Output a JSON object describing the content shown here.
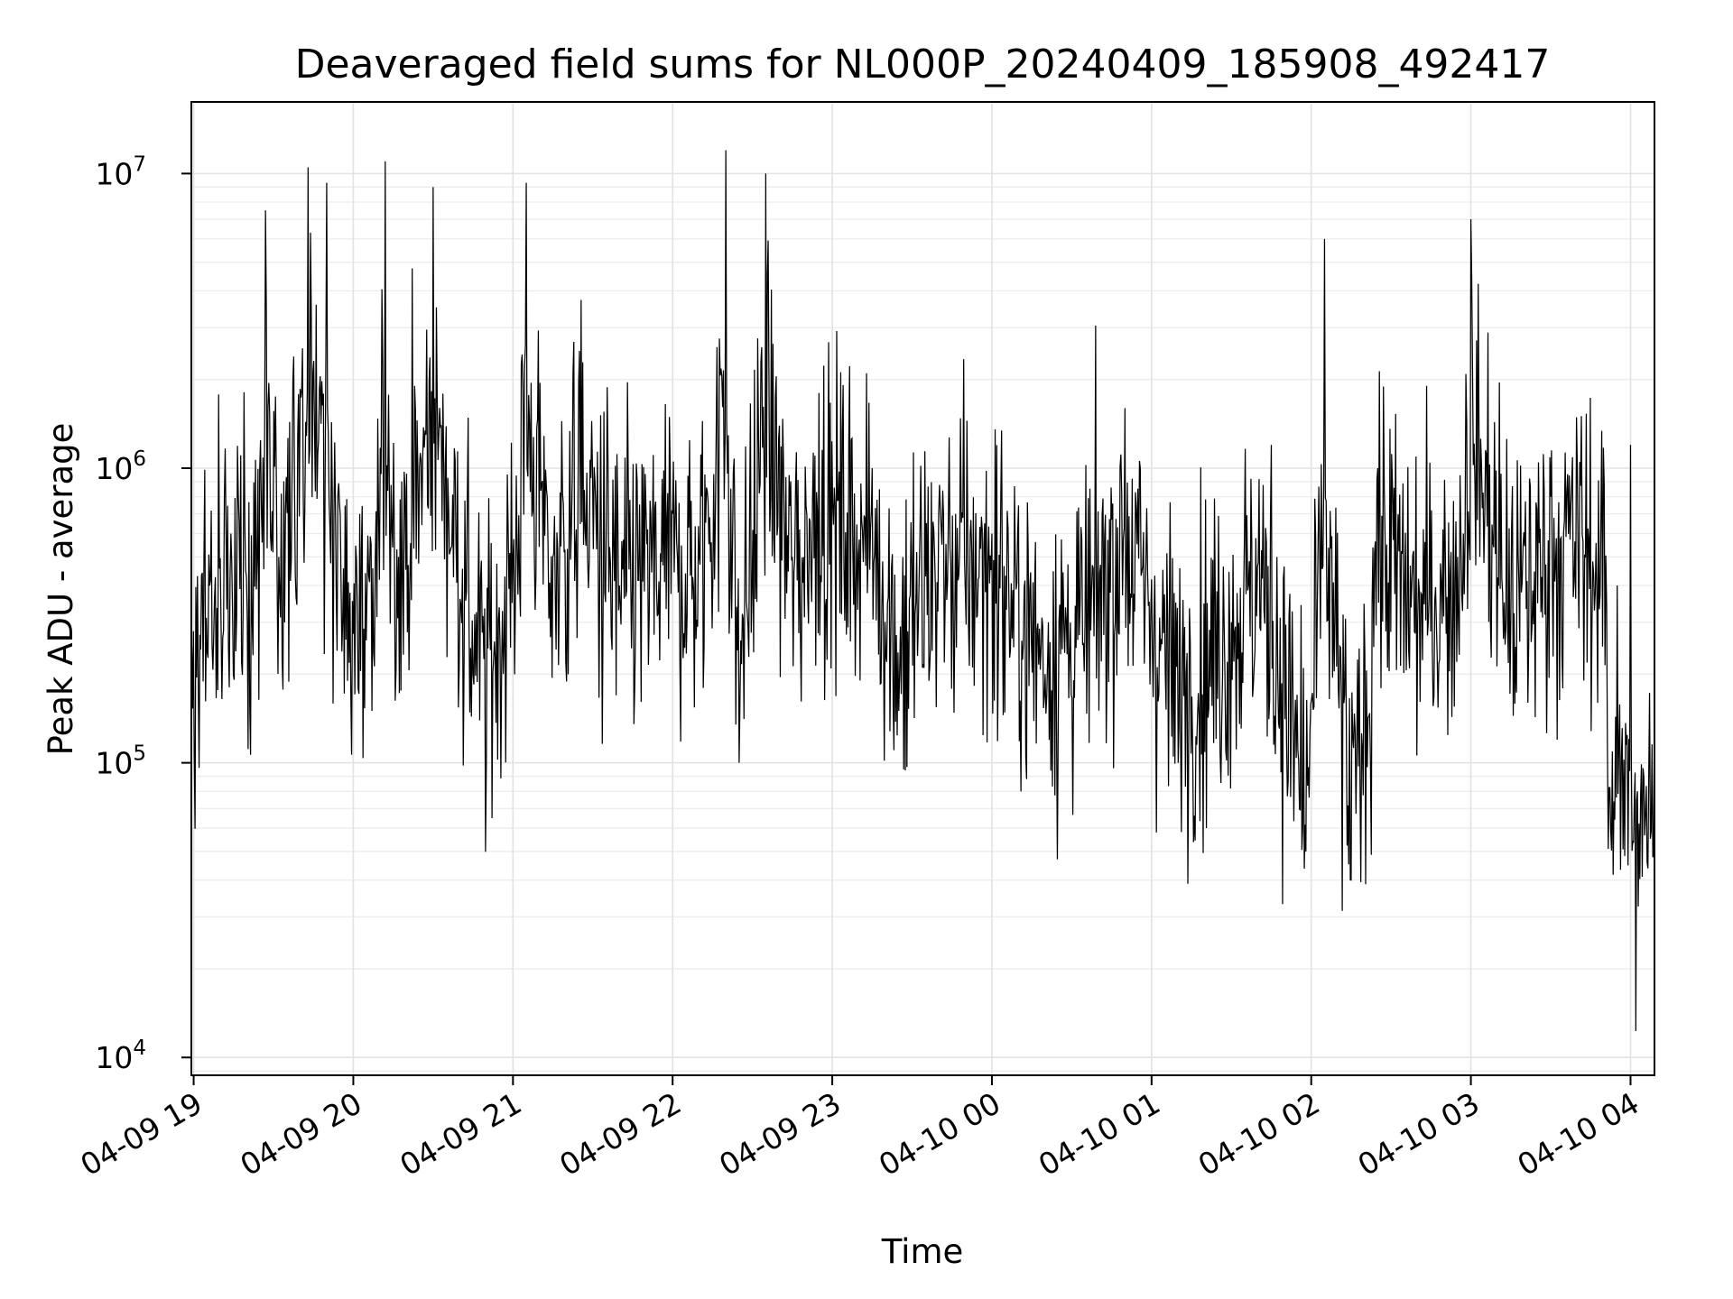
{
  "chart_data": {
    "type": "line",
    "title": "Deaveraged field sums for NL000P_20240409_185908_492417",
    "xlabel": "Time",
    "ylabel": "Peak ADU - average",
    "yscale": "log",
    "ylim": [
      8700,
      17500000
    ],
    "xlim": [
      "2024-04-09 18:59:08",
      "2024-04-10 04:09:00"
    ],
    "grid": true,
    "legend": "none",
    "line_color": "#000000",
    "x_ticks": [
      {
        "label": "04-09 19",
        "value": "2024-04-09 19:00"
      },
      {
        "label": "04-09 20",
        "value": "2024-04-09 20:00"
      },
      {
        "label": "04-09 21",
        "value": "2024-04-09 21:00"
      },
      {
        "label": "04-09 22",
        "value": "2024-04-09 22:00"
      },
      {
        "label": "04-09 23",
        "value": "2024-04-09 23:00"
      },
      {
        "label": "04-10 00",
        "value": "2024-04-10 00:00"
      },
      {
        "label": "04-10 01",
        "value": "2024-04-10 01:00"
      },
      {
        "label": "04-10 02",
        "value": "2024-04-10 02:00"
      },
      {
        "label": "04-10 03",
        "value": "2024-04-10 03:00"
      },
      {
        "label": "04-10 04",
        "value": "2024-04-10 04:00"
      }
    ],
    "y_ticks": [
      {
        "base": "10",
        "exp": "4",
        "value": 10000
      },
      {
        "base": "10",
        "exp": "5",
        "value": 100000
      },
      {
        "base": "10",
        "exp": "6",
        "value": 1000000
      },
      {
        "base": "10",
        "exp": "7",
        "value": 10000000
      }
    ],
    "series": [
      {
        "x": [
          "2024-04-09 18:59",
          "2024-04-09 19:06",
          "2024-04-09 19:14",
          "2024-04-09 19:22",
          "2024-04-09 19:27",
          "2024-04-09 19:32",
          "2024-04-09 19:37",
          "2024-04-09 19:43",
          "2024-04-09 19:50",
          "2024-04-09 19:56",
          "2024-04-09 20:07",
          "2024-04-09 20:12",
          "2024-04-09 20:17",
          "2024-04-09 20:30",
          "2024-04-09 20:45",
          "2024-04-09 20:50",
          "2024-04-09 21:00",
          "2024-04-09 21:05",
          "2024-04-09 21:15",
          "2024-04-09 21:25",
          "2024-04-09 21:40",
          "2024-04-09 22:00",
          "2024-04-09 22:10",
          "2024-04-09 22:20",
          "2024-04-09 22:25",
          "2024-04-09 22:35",
          "2024-04-09 22:45",
          "2024-04-09 22:55",
          "2024-04-09 23:15",
          "2024-04-09 23:25",
          "2024-04-09 23:40",
          "2024-04-10 00:00",
          "2024-04-10 00:20",
          "2024-04-10 00:35",
          "2024-04-10 00:50",
          "2024-04-10 01:10",
          "2024-04-10 01:30",
          "2024-04-10 01:45",
          "2024-04-10 01:58",
          "2024-04-10 02:05",
          "2024-04-10 02:15",
          "2024-04-10 02:25",
          "2024-04-10 02:40",
          "2024-04-10 02:55",
          "2024-04-10 03:00",
          "2024-04-10 03:15",
          "2024-04-10 03:30",
          "2024-04-10 03:40",
          "2024-04-10 03:55",
          "2024-04-10 04:00",
          "2024-04-10 04:02",
          "2024-04-10 04:05",
          "2024-04-10 04:09"
        ],
        "y": [
          100000,
          400000,
          600000,
          300000,
          7500000,
          500000,
          1000000,
          10500000,
          9300000,
          300000,
          150000,
          11000000,
          500000,
          9000000,
          200000,
          100000,
          500000,
          9300000,
          500000,
          2500000,
          400000,
          700000,
          500000,
          12000000,
          100000,
          10000000,
          500000,
          1800000,
          1000000,
          150000,
          700000,
          600000,
          200000,
          300000,
          1600000,
          100000,
          300000,
          1200000,
          50000,
          6000000,
          40000,
          1000000,
          300000,
          500000,
          7000000,
          300000,
          800000,
          1000000,
          400000,
          1200000,
          12000,
          90000,
          150000
        ]
      }
    ]
  }
}
